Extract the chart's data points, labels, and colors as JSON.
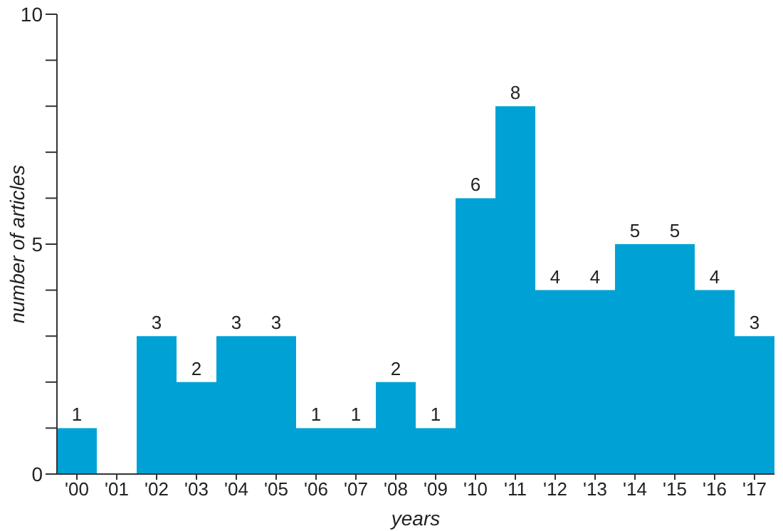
{
  "chart_data": {
    "type": "bar",
    "xlabel": "years",
    "ylabel": "number of articles",
    "categories": [
      "'00",
      "'01",
      "'02",
      "'03",
      "'04",
      "'05",
      "'06",
      "'07",
      "'08",
      "'09",
      "'10",
      "'11",
      "'12",
      "'13",
      "'14",
      "'15",
      "'16",
      "'17"
    ],
    "values": [
      1,
      0,
      3,
      2,
      3,
      3,
      1,
      1,
      2,
      1,
      6,
      8,
      4,
      4,
      5,
      5,
      4,
      3
    ],
    "value_labels": [
      "1",
      null,
      "3",
      "2",
      "3",
      "3",
      "1",
      "1",
      "2",
      "1",
      "6",
      "8",
      "4",
      "4",
      "5",
      "5",
      "4",
      "3"
    ],
    "color": "#00a2d6",
    "ylim": [
      0,
      10
    ],
    "yticks": [
      0,
      {
        "value": 1,
        "label": null
      },
      {
        "value": 2,
        "label": null
      },
      {
        "value": 3,
        "label": null
      },
      {
        "value": 4,
        "label": null
      },
      5,
      {
        "value": 6,
        "label": null
      },
      {
        "value": 7,
        "label": null
      },
      {
        "value": 8,
        "label": null
      },
      {
        "value": 9,
        "label": null
      },
      10
    ],
    "grid": false,
    "legend": false
  }
}
